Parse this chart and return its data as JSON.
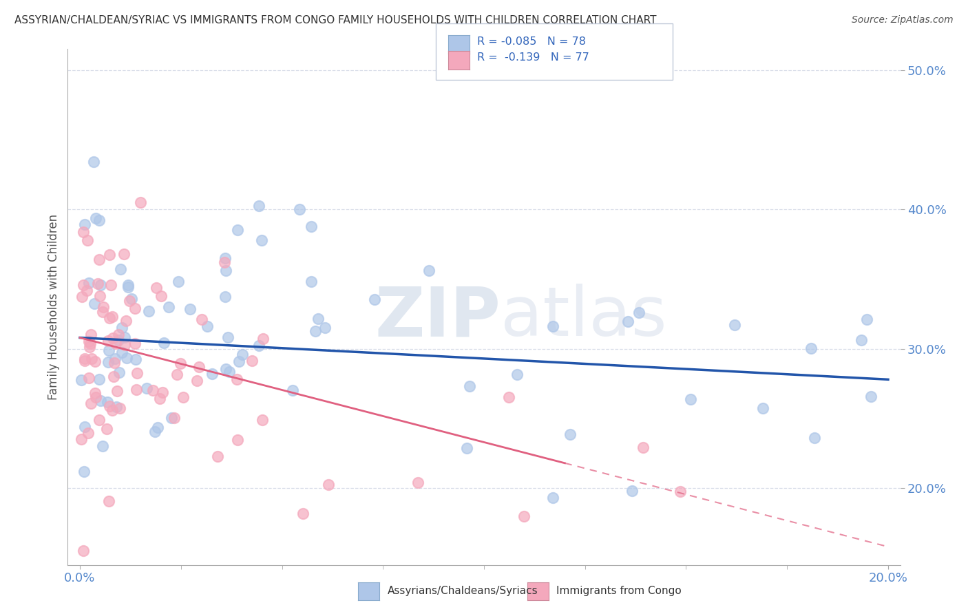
{
  "title": "ASSYRIAN/CHALDEAN/SYRIAC VS IMMIGRANTS FROM CONGO FAMILY HOUSEHOLDS WITH CHILDREN CORRELATION CHART",
  "source": "Source: ZipAtlas.com",
  "ylabel": "Family Households with Children",
  "series1_label": "Assyrians/Chaldeans/Syriacs",
  "series2_label": "Immigrants from Congo",
  "series1_R": "-0.085",
  "series1_N": "78",
  "series2_R": "-0.139",
  "series2_N": "77",
  "series1_color": "#aec6e8",
  "series2_color": "#f4a8bc",
  "series1_line_color": "#2255aa",
  "series2_line_color": "#e06080",
  "watermark_zip": "ZIP",
  "watermark_atlas": "atlas",
  "background_color": "#ffffff",
  "grid_color": "#d8dde8",
  "tick_color": "#5588cc",
  "xlim": [
    0.0,
    0.2
  ],
  "ylim": [
    0.145,
    0.515
  ],
  "yticks": [
    0.2,
    0.3,
    0.4,
    0.5
  ],
  "ytick_labels": [
    "20.0%",
    "30.0%",
    "40.0%",
    "50.0%"
  ],
  "xtick_labels": [
    "0.0%",
    "20.0%"
  ],
  "legend_R1": "R = -0.085",
  "legend_N1": "N = 78",
  "legend_R2": "R =  -0.139",
  "legend_N2": "N = 77"
}
